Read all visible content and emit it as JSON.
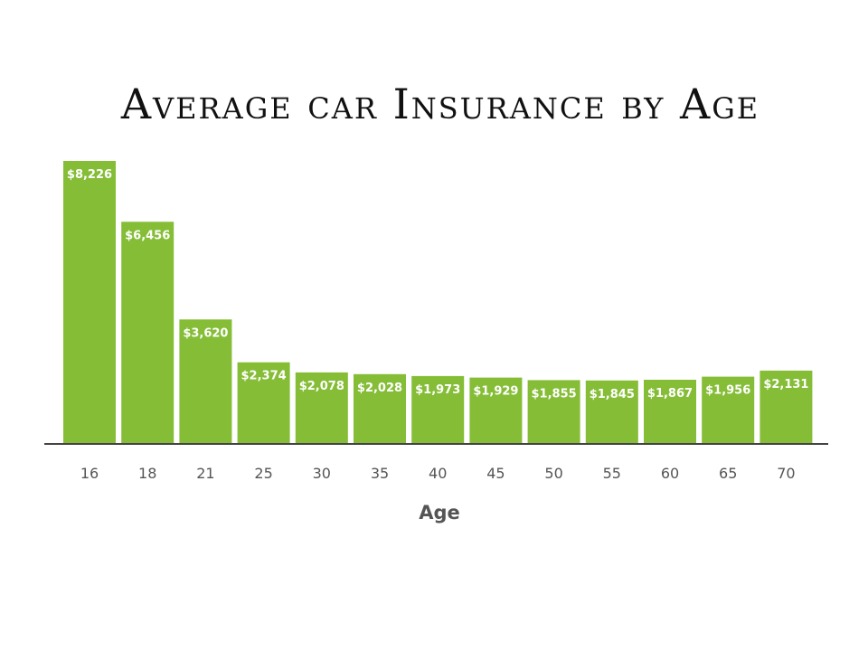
{
  "chart_data": {
    "type": "bar",
    "title": "Average car Insurance by Age",
    "xlabel": "Age",
    "ylabel": "",
    "categories": [
      "16",
      "18",
      "21",
      "25",
      "30",
      "35",
      "40",
      "45",
      "50",
      "55",
      "60",
      "65",
      "70"
    ],
    "values": [
      8226,
      6456,
      3620,
      2374,
      2078,
      2028,
      1973,
      1929,
      1855,
      1845,
      1867,
      1956,
      2131
    ],
    "data_labels": [
      "$8,226",
      "$6,456",
      "$3,620",
      "$2,374",
      "$2,078",
      "$2,028",
      "$1,973",
      "$1,929",
      "$1,855",
      "$1,845",
      "$1,867",
      "$1,956",
      "$2,131"
    ],
    "ylim": [
      0,
      8226
    ],
    "grid": false,
    "legend": "none",
    "colors": {
      "bar": "#85bd37",
      "bar_label": "#ffffff",
      "axis": "#444444",
      "tick_label": "#555555",
      "title": "#111111"
    }
  }
}
